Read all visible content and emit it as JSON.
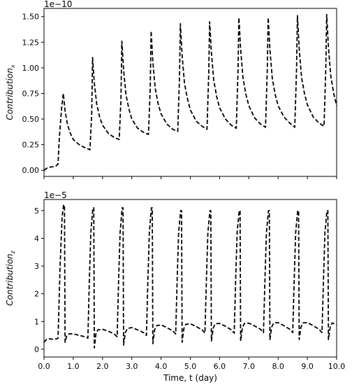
{
  "chart_data": [
    {
      "type": "line",
      "ylabel_base": "Contribution",
      "ylabel_sub": "x",
      "offset_label": "1e−10",
      "xlim": [
        0,
        10
      ],
      "ylim": [
        -0.06,
        1.58
      ],
      "yticks": [
        0.0,
        0.25,
        0.5,
        0.75,
        1.0,
        1.25,
        1.5
      ],
      "ytick_labels": [
        "0.00",
        "0.25",
        "0.50",
        "0.75",
        "1.00",
        "1.25",
        "1.50"
      ],
      "show_x_tick_labels": false,
      "line_style": "dashed",
      "color": "#000000",
      "series": [
        {
          "x": [
            0.0,
            0.1,
            0.2,
            0.3,
            0.4,
            0.48,
            0.52,
            0.6,
            0.66,
            0.72,
            0.8,
            0.9,
            1.0,
            1.2,
            1.4,
            1.57,
            1.63,
            1.66,
            1.72,
            1.8,
            1.9,
            2.0,
            2.2,
            2.4,
            2.57,
            2.63,
            2.66,
            2.72,
            2.8,
            2.9,
            3.0,
            3.2,
            3.4,
            3.57,
            3.63,
            3.66,
            3.72,
            3.8,
            3.9,
            4.0,
            4.2,
            4.4,
            4.57,
            4.63,
            4.66,
            4.72,
            4.8,
            4.9,
            5.0,
            5.2,
            5.4,
            5.57,
            5.63,
            5.66,
            5.72,
            5.8,
            5.9,
            6.0,
            6.2,
            6.4,
            6.57,
            6.63,
            6.66,
            6.72,
            6.8,
            6.9,
            7.0,
            7.2,
            7.4,
            7.57,
            7.63,
            7.66,
            7.72,
            7.8,
            7.9,
            8.0,
            8.2,
            8.4,
            8.57,
            8.63,
            8.66,
            8.72,
            8.8,
            8.9,
            9.0,
            9.2,
            9.4,
            9.57,
            9.63,
            9.66,
            9.72,
            9.8,
            9.9,
            10.0
          ],
          "y": [
            0.0,
            0.02,
            0.03,
            0.035,
            0.04,
            0.06,
            0.3,
            0.6,
            0.75,
            0.58,
            0.45,
            0.36,
            0.3,
            0.25,
            0.22,
            0.2,
            0.55,
            1.1,
            0.85,
            0.65,
            0.52,
            0.44,
            0.36,
            0.32,
            0.3,
            0.7,
            1.26,
            0.98,
            0.74,
            0.6,
            0.5,
            0.41,
            0.37,
            0.35,
            0.8,
            1.36,
            1.06,
            0.8,
            0.65,
            0.55,
            0.45,
            0.4,
            0.38,
            0.9,
            1.43,
            1.12,
            0.85,
            0.7,
            0.59,
            0.48,
            0.43,
            0.4,
            0.95,
            1.45,
            1.15,
            0.88,
            0.72,
            0.61,
            0.5,
            0.44,
            0.41,
            0.97,
            1.49,
            1.18,
            0.9,
            0.74,
            0.63,
            0.51,
            0.45,
            0.42,
            0.98,
            1.49,
            1.18,
            0.9,
            0.74,
            0.63,
            0.52,
            0.46,
            0.42,
            0.99,
            1.51,
            1.19,
            0.91,
            0.75,
            0.64,
            0.52,
            0.46,
            0.43,
            1.0,
            1.52,
            1.2,
            0.92,
            0.75,
            0.63
          ]
        }
      ]
    },
    {
      "type": "line",
      "ylabel_base": "Contribution",
      "ylabel_sub": "z",
      "offset_label": "1e−5",
      "xlabel": "Time, t (day)",
      "xlim": [
        0,
        10
      ],
      "ylim": [
        -0.28,
        5.4
      ],
      "xticks": [
        0,
        1,
        2,
        3,
        4,
        5,
        6,
        7,
        8,
        9,
        10
      ],
      "xtick_labels": [
        "0.0",
        "1.0",
        "2.0",
        "3.0",
        "4.0",
        "5.0",
        "6.0",
        "7.0",
        "8.0",
        "9.0",
        "10.0"
      ],
      "yticks": [
        0,
        1,
        2,
        3,
        4,
        5
      ],
      "ytick_labels": [
        "0",
        "1",
        "2",
        "3",
        "4",
        "5"
      ],
      "show_x_tick_labels": true,
      "line_style": "dashed",
      "color": "#000000",
      "series": [
        {
          "x": [
            0.0,
            0.08,
            0.15,
            0.3,
            0.45,
            0.48,
            0.55,
            0.62,
            0.67,
            0.7,
            0.72,
            0.78,
            0.85,
            1.0,
            1.2,
            1.4,
            1.5,
            1.55,
            1.6,
            1.67,
            1.7,
            1.72,
            1.78,
            1.85,
            2.0,
            2.2,
            2.4,
            2.5,
            2.55,
            2.6,
            2.67,
            2.7,
            2.72,
            2.78,
            2.85,
            3.0,
            3.2,
            3.4,
            3.5,
            3.55,
            3.6,
            3.67,
            3.7,
            3.72,
            3.78,
            3.85,
            4.0,
            4.2,
            4.4,
            4.5,
            4.55,
            4.6,
            4.67,
            4.7,
            4.72,
            4.78,
            4.85,
            5.0,
            5.2,
            5.4,
            5.5,
            5.55,
            5.6,
            5.67,
            5.7,
            5.72,
            5.78,
            5.85,
            6.0,
            6.2,
            6.4,
            6.5,
            6.55,
            6.6,
            6.67,
            6.7,
            6.72,
            6.78,
            6.85,
            7.0,
            7.2,
            7.4,
            7.5,
            7.55,
            7.6,
            7.67,
            7.7,
            7.72,
            7.78,
            7.85,
            8.0,
            8.2,
            8.4,
            8.5,
            8.55,
            8.6,
            8.67,
            8.7,
            8.72,
            8.78,
            8.85,
            9.0,
            9.2,
            9.4,
            9.5,
            9.55,
            9.6,
            9.67,
            9.7,
            9.72,
            9.78,
            9.85,
            10.0
          ],
          "y": [
            0.25,
            0.35,
            0.38,
            0.36,
            0.38,
            0.4,
            3.0,
            4.8,
            5.2,
            5.2,
            0.25,
            0.5,
            0.55,
            0.56,
            0.5,
            0.45,
            0.4,
            2.5,
            4.2,
            5.1,
            5.1,
            0.05,
            0.6,
            0.7,
            0.72,
            0.65,
            0.55,
            0.45,
            2.5,
            4.2,
            5.1,
            5.1,
            0.15,
            0.6,
            0.75,
            0.78,
            0.7,
            0.6,
            0.5,
            2.5,
            4.2,
            5.1,
            5.1,
            0.2,
            0.7,
            0.85,
            0.88,
            0.78,
            0.66,
            0.55,
            2.5,
            4.2,
            5.0,
            5.0,
            0.25,
            0.75,
            0.9,
            0.92,
            0.82,
            0.7,
            0.58,
            2.5,
            4.2,
            5.0,
            5.0,
            0.3,
            0.75,
            0.92,
            0.93,
            0.83,
            0.7,
            0.58,
            2.5,
            4.2,
            5.0,
            5.0,
            0.3,
            0.78,
            0.93,
            0.94,
            0.84,
            0.72,
            0.6,
            2.5,
            4.2,
            5.0,
            5.0,
            0.35,
            0.8,
            0.95,
            0.96,
            0.85,
            0.72,
            0.6,
            2.5,
            4.2,
            5.0,
            5.0,
            0.35,
            0.8,
            0.95,
            0.96,
            0.85,
            0.72,
            0.6,
            2.5,
            4.2,
            5.0,
            5.0,
            0.35,
            0.8,
            0.95,
            0.88
          ]
        }
      ]
    }
  ]
}
